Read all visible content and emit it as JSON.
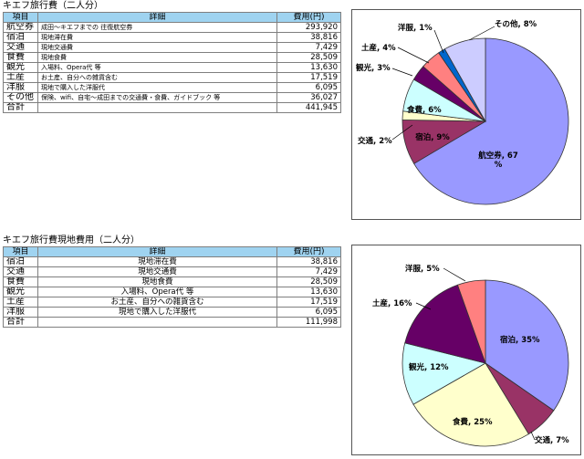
{
  "table1": {
    "title": "キエフ旅行費（二人分）",
    "headers": [
      "項目",
      "詳細",
      "費用(円)"
    ],
    "rows": [
      {
        "item": "航空券",
        "detail": "成田～キエフまでの 往復航空券",
        "cost": "293,920"
      },
      {
        "item": "宿泊",
        "detail": "現地滞在費",
        "cost": "38,816"
      },
      {
        "item": "交通",
        "detail": "現地交通費",
        "cost": "7,429"
      },
      {
        "item": "食費",
        "detail": "現地食費",
        "cost": "28,509"
      },
      {
        "item": "観光",
        "detail": "入場料、Opera代 等",
        "cost": "13,630"
      },
      {
        "item": "土産",
        "detail": "お土産、自分への雑貨含む",
        "cost": "17,519"
      },
      {
        "item": "洋服",
        "detail": "現地で購入した洋服代",
        "cost": "6,095"
      },
      {
        "item": "その他",
        "detail": "保険、wifi、自宅～成田までの交通費・食費、ガイドブック 等",
        "cost": "36,027"
      },
      {
        "item": "合計",
        "detail": "",
        "cost": "441,945"
      }
    ]
  },
  "table2": {
    "title": "キエフ旅行費現地費用（二人分）",
    "headers": [
      "項目",
      "詳細",
      "費用(円)"
    ],
    "rows": [
      {
        "item": "宿泊",
        "detail": "現地滞在費",
        "cost": "38,816"
      },
      {
        "item": "交通",
        "detail": "現地交通費",
        "cost": "7,429"
      },
      {
        "item": "食費",
        "detail": "現地食費",
        "cost": "28,509"
      },
      {
        "item": "観光",
        "detail": "入場料、Opera代 等",
        "cost": "13,630"
      },
      {
        "item": "土産",
        "detail": "お土産、自分への雑貨含む",
        "cost": "17,519"
      },
      {
        "item": "洋服",
        "detail": "現地で購入した洋服代",
        "cost": "6,095"
      },
      {
        "item": "合計",
        "detail": "",
        "cost": "111,998"
      }
    ]
  },
  "chart_data": [
    {
      "type": "pie",
      "title": "",
      "categories": [
        "航空券",
        "宿泊",
        "交通",
        "食費",
        "観光",
        "土産",
        "洋服",
        "その他"
      ],
      "values": [
        293920,
        38816,
        7429,
        28509,
        13630,
        17519,
        6095,
        36027
      ],
      "labels": [
        "航空券, 67 %",
        "宿泊, 9%",
        "交通, 2%",
        "食費, 6%",
        "観光, 3%",
        "土産, 4%",
        "洋服, 1%",
        "その他, 8%"
      ],
      "colors": [
        "#9999ff",
        "#993366",
        "#ffffcc",
        "#ccffff",
        "#660066",
        "#ff8080",
        "#0066cc",
        "#ccccff"
      ]
    },
    {
      "type": "pie",
      "title": "",
      "categories": [
        "宿泊",
        "交通",
        "食費",
        "観光",
        "土産",
        "洋服"
      ],
      "values": [
        38816,
        7429,
        28509,
        13630,
        17519,
        6095
      ],
      "labels": [
        "宿泊, 35%",
        "交通, 7%",
        "食費, 25%",
        "観光, 12%",
        "土産, 16%",
        "洋服, 5%"
      ],
      "colors": [
        "#9999ff",
        "#993366",
        "#ffffcc",
        "#ccffff",
        "#660066",
        "#ff8080"
      ]
    }
  ]
}
